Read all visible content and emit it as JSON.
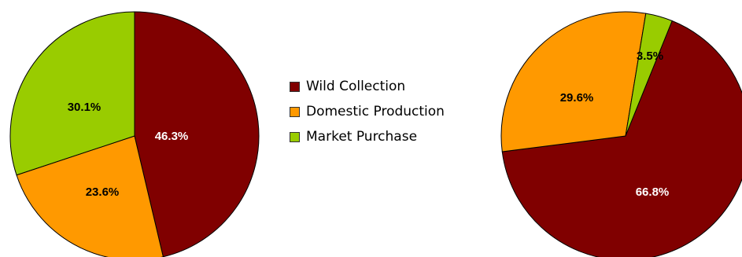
{
  "chart_data": [
    {
      "type": "pie",
      "title": "",
      "categories": [
        "Wild Collection",
        "Domestic Production",
        "Market Purchase"
      ],
      "values": [
        46.3,
        23.6,
        30.1
      ],
      "labels": [
        "46.3%",
        "23.6%",
        "30.1%"
      ],
      "start_angle_deg": 0,
      "direction": "clockwise"
    },
    {
      "type": "pie",
      "title": "",
      "categories": [
        "Wild Collection",
        "Domestic Production",
        "Market Purchase"
      ],
      "values": [
        66.8,
        29.6,
        3.5
      ],
      "labels": [
        "66.8%",
        "29.6%",
        "3.5%"
      ],
      "start_angle_deg": 22,
      "direction": "clockwise"
    }
  ],
  "legend": {
    "placement": "center",
    "items": [
      {
        "label": "Wild Collection",
        "color": "#800000"
      },
      {
        "label": "Domestic Production",
        "color": "#FF9900"
      },
      {
        "label": "Market Purchase",
        "color": "#99CC00"
      }
    ]
  },
  "colors": {
    "wild_collection": "#800000",
    "domestic_production": "#FF9900",
    "market_purchase": "#99CC00"
  }
}
